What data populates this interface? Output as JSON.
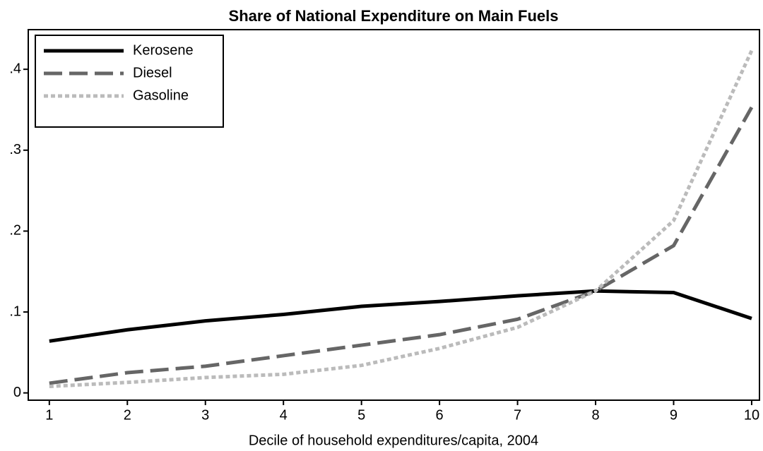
{
  "chart_data": {
    "type": "line",
    "title": "Share of National Expenditure on Main Fuels",
    "x_label": "Decile of household expenditures/capita, 2004",
    "x": [
      1,
      2,
      3,
      4,
      5,
      6,
      7,
      8,
      9,
      10
    ],
    "series": [
      {
        "name": "Kerosene",
        "color": "#000000",
        "style": "solid",
        "values": [
          0.064,
          0.078,
          0.089,
          0.097,
          0.107,
          0.113,
          0.12,
          0.126,
          0.124,
          0.092
        ]
      },
      {
        "name": "Diesel",
        "color": "#666666",
        "style": "dashed",
        "values": [
          0.012,
          0.025,
          0.033,
          0.046,
          0.059,
          0.072,
          0.091,
          0.126,
          0.182,
          0.353
        ]
      },
      {
        "name": "Gasoline",
        "color": "#bbbbbb",
        "style": "dotted",
        "values": [
          0.008,
          0.013,
          0.019,
          0.023,
          0.034,
          0.055,
          0.081,
          0.126,
          0.213,
          0.423
        ]
      }
    ],
    "xlim": [
      0.73,
      10.1
    ],
    "xticks": [
      1,
      2,
      3,
      4,
      5,
      6,
      7,
      8,
      9,
      10
    ],
    "ylim": [
      -0.009,
      0.449
    ],
    "yticks": [
      0,
      {
        "value": 0.1,
        "label": ".1"
      },
      {
        "value": 0.2,
        "label": ".2"
      },
      {
        "value": 0.3,
        "label": ".3"
      },
      {
        "value": 0.4,
        "label": ".4"
      }
    ],
    "legend": "top-left"
  }
}
